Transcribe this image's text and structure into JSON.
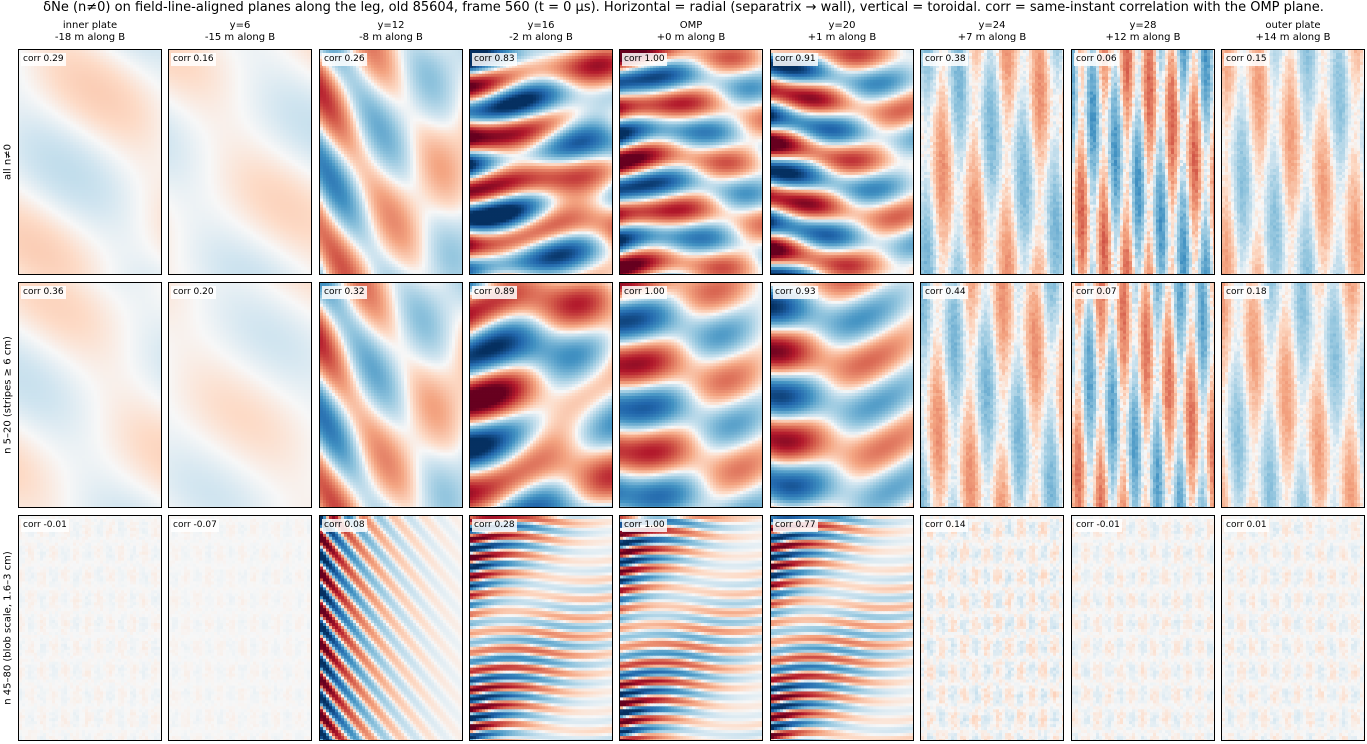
{
  "title": "δNe (n≠0) on field-line-aligned planes along the leg, old 85604, frame 560 (t = 0 µs). Horizontal = radial (separatrix → wall), vertical = toroidal. corr = same-instant correlation with the OMP plane.",
  "colormap": {
    "negative": "#053061",
    "mid": "#f7f7f7",
    "positive": "#67001f"
  },
  "columns": [
    {
      "name": "inner plate",
      "position": "-18 m along B"
    },
    {
      "name": "y=6",
      "position": "-15 m along B"
    },
    {
      "name": "y=12",
      "position": "-8 m along B"
    },
    {
      "name": "y=16",
      "position": "-2 m along B"
    },
    {
      "name": "OMP",
      "position": "+0 m along B"
    },
    {
      "name": "y=20",
      "position": "+1 m along B"
    },
    {
      "name": "y=24",
      "position": "+7 m along B"
    },
    {
      "name": "y=28",
      "position": "+12 m along B"
    },
    {
      "name": "outer plate",
      "position": "+14 m along B"
    }
  ],
  "rows": [
    {
      "label": "all n≠0"
    },
    {
      "label": "n 5–20 (stripes ≥ 6 cm)"
    },
    {
      "label": "n 45–80 (blob scale, 1.6–3 cm)"
    }
  ],
  "chart_data": {
    "type": "heatmap",
    "title": "δNe (n≠0) on field-line-aligned planes along the leg, old 85604, frame 560 (t = 0 µs). Horizontal = radial (separatrix → wall), vertical = toroidal. corr = same-instant correlation with the OMP plane.",
    "xlabel": "",
    "ylabel": "",
    "corr": [
      [
        "corr 0.29",
        "corr 0.16",
        "corr 0.26",
        "corr 0.83",
        "corr 1.00",
        "corr 0.91",
        "corr 0.38",
        "corr 0.06",
        "corr 0.15"
      ],
      [
        "corr 0.36",
        "corr 0.20",
        "corr 0.32",
        "corr 0.89",
        "corr 1.00",
        "corr 0.93",
        "corr 0.44",
        "corr 0.07",
        "corr 0.18"
      ],
      [
        "corr -0.01",
        "corr -0.07",
        "corr 0.08",
        "corr 0.28",
        "corr 1.00",
        "corr 0.77",
        "corr 0.14",
        "corr -0.01",
        "corr 0.01"
      ]
    ],
    "corr_values": [
      [
        0.29,
        0.16,
        0.26,
        0.83,
        1.0,
        0.91,
        0.38,
        0.06,
        0.15
      ],
      [
        0.36,
        0.2,
        0.32,
        0.89,
        1.0,
        0.93,
        0.44,
        0.07,
        0.18
      ],
      [
        -0.01,
        -0.07,
        0.08,
        0.28,
        1.0,
        0.77,
        0.14,
        -0.01,
        0.01
      ]
    ],
    "amplitude": [
      [
        0.12,
        0.1,
        0.55,
        1.0,
        1.0,
        1.0,
        0.3,
        0.45,
        0.25
      ],
      [
        0.1,
        0.08,
        0.55,
        0.85,
        0.8,
        0.8,
        0.3,
        0.4,
        0.25
      ],
      [
        0.04,
        0.03,
        0.95,
        1.0,
        1.0,
        1.0,
        0.12,
        0.08,
        0.08
      ]
    ],
    "colorbar": false
  }
}
